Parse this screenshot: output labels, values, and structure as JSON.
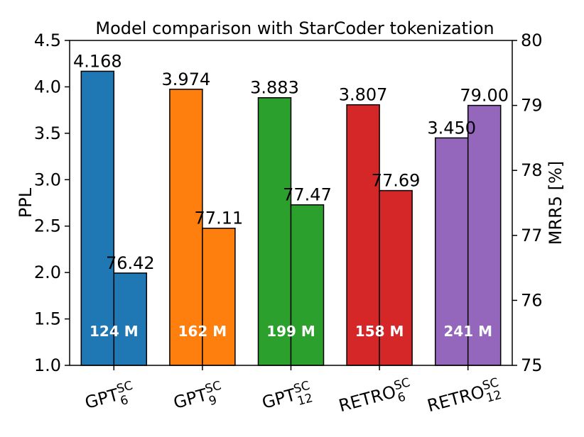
{
  "chart_data": {
    "type": "bar",
    "title": "Model comparison with StarCoder tokenization",
    "categories": [
      {
        "base": "GPT",
        "sup": "SC",
        "sub": "6"
      },
      {
        "base": "GPT",
        "sup": "SC",
        "sub": "9"
      },
      {
        "base": "GPT",
        "sup": "SC",
        "sub": "12"
      },
      {
        "base": "RETRO",
        "sup": "SC",
        "sub": "6"
      },
      {
        "base": "RETRO",
        "sup": "SC",
        "sub": "12"
      }
    ],
    "colors": [
      "#1f77b4",
      "#ff7f0e",
      "#2ca02c",
      "#d62728",
      "#9467bd"
    ],
    "params": [
      "124 M",
      "162 M",
      "199 M",
      "158 M",
      "241 M"
    ],
    "series": [
      {
        "name": "PPL",
        "axis": "left",
        "values": [
          4.168,
          3.974,
          3.883,
          3.807,
          3.45
        ],
        "labels": [
          "4.168",
          "3.974",
          "3.883",
          "3.807",
          "3.450"
        ]
      },
      {
        "name": "MRR5 [%]",
        "axis": "right",
        "values": [
          76.42,
          77.11,
          77.47,
          77.69,
          79.0
        ],
        "labels": [
          "76.42",
          "77.11",
          "77.47",
          "77.69",
          "79.00"
        ]
      }
    ],
    "ylabel": "PPL",
    "ylim": [
      1.0,
      4.5
    ],
    "yticks": [
      "1.0",
      "1.5",
      "2.0",
      "2.5",
      "3.0",
      "3.5",
      "4.0",
      "4.5"
    ],
    "y2label": "MRR5 [%]",
    "y2lim": [
      75,
      80
    ],
    "y2ticks": [
      "75",
      "76",
      "77",
      "78",
      "79",
      "80"
    ],
    "grid": false,
    "legend": "none"
  }
}
